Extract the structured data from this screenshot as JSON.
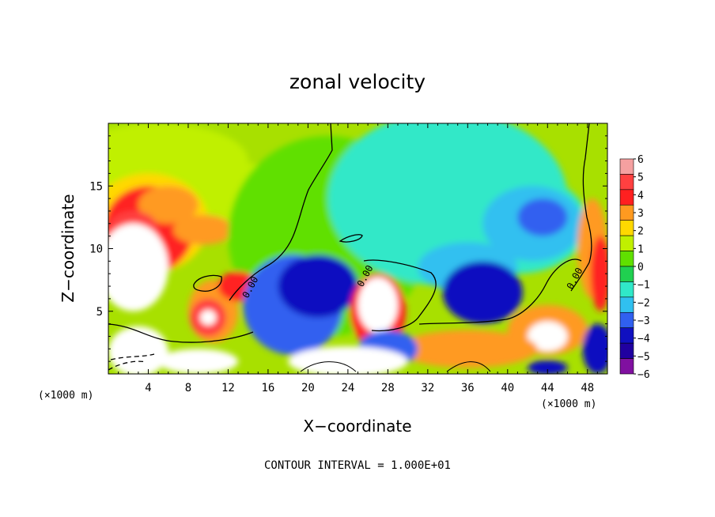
{
  "chart_data": {
    "type": "heatmap",
    "title": "zonal velocity",
    "xlabel": "X−coordinate",
    "ylabel": "Z−coordinate",
    "x_unit": "(×1000 m)",
    "x_unit_right": "(×1000 m)",
    "xlim": [
      0,
      50
    ],
    "ylim": [
      0,
      20
    ],
    "x_ticks": [
      4,
      8,
      12,
      16,
      20,
      24,
      28,
      32,
      36,
      40,
      44,
      48
    ],
    "y_ticks": [
      5,
      10,
      15
    ],
    "colorbar": {
      "levels": [
        6,
        5,
        4,
        3,
        2,
        1,
        0,
        -1,
        -2,
        -3,
        -4,
        -5,
        -6
      ],
      "level_labels": [
        "6",
        "5",
        "4",
        "3",
        "2",
        "1",
        "0",
        "−1",
        "−2",
        "−3",
        "−4",
        "−5",
        "−6"
      ],
      "colors": [
        "#f5a0a0",
        "#ff4040",
        "#ff2020",
        "#ff9a20",
        "#ffd800",
        "#c0f000",
        "#60e000",
        "#20d050",
        "#30e8c8",
        "#30c0f0",
        "#3060f0",
        "#1010c0",
        "#2000a0",
        "#8010a0"
      ]
    },
    "contour_labels": [
      "0.00",
      "0.00",
      "0.00"
    ],
    "contour_label_positions": [
      [
        14.5,
        6.8
      ],
      [
        26.0,
        7.7
      ],
      [
        47.0,
        7.5
      ]
    ],
    "footer": "CONTOUR INTERVAL = 1.000E+01",
    "regions": [
      {
        "cx": 5,
        "cy": 17,
        "rx": 9,
        "ry": 3,
        "v": 1
      },
      {
        "cx": 10,
        "cy": 14,
        "rx": 12,
        "ry": 3,
        "v": 1
      },
      {
        "cx": 4,
        "cy": 12,
        "rx": 6,
        "ry": 4,
        "v": 2
      },
      {
        "cx": 4,
        "cy": 11.5,
        "rx": 4.5,
        "ry": 3.5,
        "v": 4
      },
      {
        "cx": 9.5,
        "cy": 11.5,
        "rx": 3,
        "ry": 1.2,
        "v": 3
      },
      {
        "cx": 6,
        "cy": 13.5,
        "rx": 3,
        "ry": 1.5,
        "v": 3
      },
      {
        "cx": 2.5,
        "cy": 11.5,
        "rx": 2.5,
        "ry": 1.5,
        "v": 5
      },
      {
        "cx": 2.5,
        "cy": 8.5,
        "rx": 3.5,
        "ry": 3.5,
        "v": 7
      },
      {
        "cx": 22,
        "cy": 11,
        "rx": 10,
        "ry": 8,
        "v": 0
      },
      {
        "cx": 34,
        "cy": 14,
        "rx": 12,
        "ry": 7,
        "v": -2
      },
      {
        "cx": 41,
        "cy": 12,
        "rx": 7,
        "ry": 4,
        "v": -2
      },
      {
        "cx": 42.5,
        "cy": 12,
        "rx": 5,
        "ry": 3,
        "v": -3
      },
      {
        "cx": 43.5,
        "cy": 12.5,
        "rx": 2.5,
        "ry": 1.5,
        "v": -4
      },
      {
        "cx": 36,
        "cy": 8.5,
        "rx": 5,
        "ry": 2,
        "v": -3
      },
      {
        "cx": 48.5,
        "cy": 10,
        "rx": 1.5,
        "ry": 4,
        "v": 3
      },
      {
        "cx": 49.3,
        "cy": 8,
        "rx": 1,
        "ry": 3,
        "v": 4
      },
      {
        "cx": 10.5,
        "cy": 5,
        "rx": 2.5,
        "ry": 2.5,
        "v": 3
      },
      {
        "cx": 10,
        "cy": 4.5,
        "rx": 1.8,
        "ry": 1.5,
        "v": 5
      },
      {
        "cx": 10,
        "cy": 4.5,
        "rx": 0.8,
        "ry": 0.6,
        "v": 7
      },
      {
        "cx": 13,
        "cy": 7,
        "rx": 2,
        "ry": 1.2,
        "v": 4
      },
      {
        "cx": 18.5,
        "cy": 5.5,
        "rx": 5,
        "ry": 4,
        "v": -4
      },
      {
        "cx": 21,
        "cy": 7,
        "rx": 4,
        "ry": 2.5,
        "v": -5
      },
      {
        "cx": 27,
        "cy": 5,
        "rx": 2.8,
        "ry": 3,
        "v": 4
      },
      {
        "cx": 27,
        "cy": 5.5,
        "rx": 2,
        "ry": 2.2,
        "v": 7
      },
      {
        "cx": 37.5,
        "cy": 6.5,
        "rx": 4,
        "ry": 2.5,
        "v": -5
      },
      {
        "cx": 44,
        "cy": 3.5,
        "rx": 4,
        "ry": 2,
        "v": 3
      },
      {
        "cx": 44,
        "cy": 3,
        "rx": 2,
        "ry": 1.2,
        "v": 7
      },
      {
        "cx": 36,
        "cy": 2,
        "rx": 7,
        "ry": 1.5,
        "v": 3
      },
      {
        "cx": 28,
        "cy": 2,
        "rx": 3,
        "ry": 1.5,
        "v": -4
      },
      {
        "cx": 9,
        "cy": 1,
        "rx": 4,
        "ry": 1,
        "v": 7
      },
      {
        "cx": 3,
        "cy": 1.8,
        "rx": 3,
        "ry": 2,
        "v": 7
      },
      {
        "cx": 24,
        "cy": 1,
        "rx": 6,
        "ry": 1.2,
        "v": 7
      },
      {
        "cx": 49,
        "cy": 2,
        "rx": 1.5,
        "ry": 2,
        "v": -5
      },
      {
        "cx": 44,
        "cy": 0.5,
        "rx": 2,
        "ry": 0.6,
        "v": -5
      }
    ]
  }
}
